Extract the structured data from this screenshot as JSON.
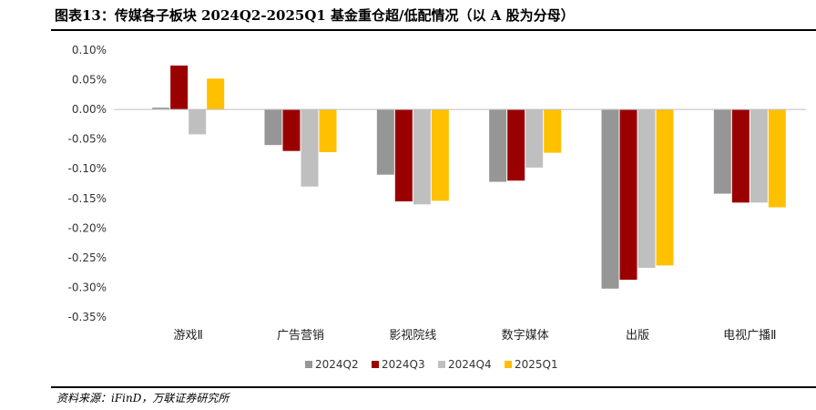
{
  "header": {
    "title": "图表13：传媒各子板块 2024Q2-2025Q1 基金重仓超/低配情况（以 A 股为分母）"
  },
  "footer": {
    "source": "资料来源：iFinD，万联证券研究所"
  },
  "chart_data": {
    "type": "bar",
    "title": "图表13：传媒各子板块 2024Q2-2025Q1 基金重仓超/低配情况（以 A 股为分母）",
    "xlabel": "",
    "ylabel": "",
    "ylim": [
      -0.35,
      0.1
    ],
    "yticks": [
      0.1,
      0.05,
      0.0,
      -0.05,
      -0.1,
      -0.15,
      -0.2,
      -0.25,
      -0.3,
      -0.35
    ],
    "ytick_labels": [
      "0.10%",
      "0.05%",
      "0.00%",
      "-0.05%",
      "-0.10%",
      "-0.15%",
      "-0.20%",
      "-0.25%",
      "-0.30%",
      "-0.35%"
    ],
    "unit": "%",
    "grid": false,
    "legend_position": "bottom",
    "categories": [
      "游戏Ⅱ",
      "广告营销",
      "影视院线",
      "数字媒体",
      "出版",
      "电视广播Ⅱ"
    ],
    "series": [
      {
        "name": "2024Q2",
        "color": "#969696",
        "values": [
          0.003,
          -0.06,
          -0.11,
          -0.122,
          -0.302,
          -0.142
        ]
      },
      {
        "name": "2024Q3",
        "color": "#9B0000",
        "values": [
          0.074,
          -0.07,
          -0.155,
          -0.12,
          -0.287,
          -0.157
        ]
      },
      {
        "name": "2024Q4",
        "color": "#BFBFBF",
        "values": [
          -0.042,
          -0.13,
          -0.16,
          -0.098,
          -0.267,
          -0.157
        ]
      },
      {
        "name": "2025Q1",
        "color": "#FFC000",
        "values": [
          0.052,
          -0.072,
          -0.154,
          -0.073,
          -0.263,
          -0.165
        ]
      }
    ]
  }
}
